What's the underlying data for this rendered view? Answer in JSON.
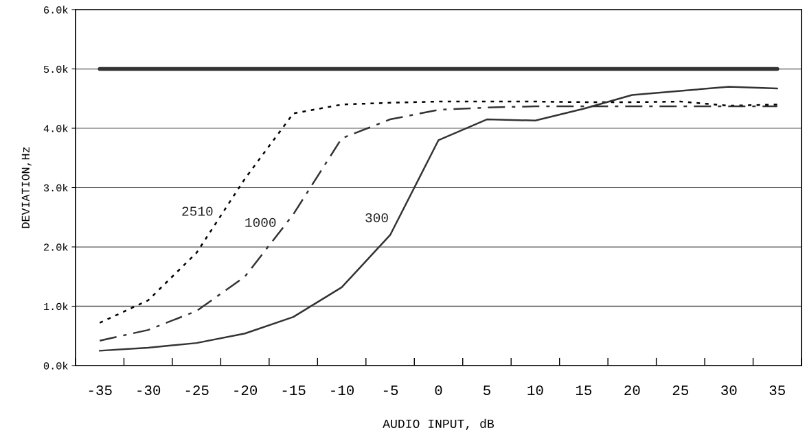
{
  "chart_data": {
    "type": "line",
    "xlabel": "AUDIO INPUT, dB",
    "ylabel": "DEVIATION,Hz",
    "categories": [
      "-35",
      "-30",
      "-25",
      "-20",
      "-15",
      "-10",
      "-5",
      "0",
      "5",
      "10",
      "15",
      "20",
      "25",
      "30",
      "35"
    ],
    "series": [
      {
        "color": "#333333",
        "line_style": "solid",
        "values": [
          5.0,
          5.0,
          5.0,
          5.0,
          5.0,
          5.0,
          5.0,
          5.0,
          5.0,
          5.0,
          5.0,
          5.0,
          5.0,
          5.0,
          5.0
        ]
      },
      {
        "name": "2510",
        "color": "#000000",
        "line_style": "dotted",
        "values": [
          0.72,
          1.1,
          1.9,
          3.15,
          4.25,
          4.4,
          4.43,
          4.45,
          4.45,
          4.45,
          4.44,
          4.44,
          4.45,
          4.38,
          4.4
        ]
      },
      {
        "name": "1000",
        "color": "#333333",
        "line_style": "dashdot",
        "values": [
          0.42,
          0.6,
          0.92,
          1.5,
          2.55,
          3.83,
          4.15,
          4.31,
          4.35,
          4.37,
          4.37,
          4.37,
          4.37,
          4.37,
          4.37
        ]
      },
      {
        "name": "300",
        "color": "#333333",
        "line_style": "solid",
        "values": [
          0.25,
          0.3,
          0.38,
          0.54,
          0.82,
          1.32,
          2.2,
          3.8,
          4.15,
          4.13,
          4.33,
          4.56,
          4.63,
          4.7,
          4.67
        ]
      }
    ],
    "ylim": [
      0,
      6
    ],
    "yticks": [
      {
        "value": 0,
        "label": "0.0k"
      },
      {
        "value": 1,
        "label": "1.0k"
      },
      {
        "value": 2,
        "label": "2.0k"
      },
      {
        "value": 3,
        "label": "3.0k"
      },
      {
        "value": 4,
        "label": "4.0k"
      },
      {
        "value": 5,
        "label": "5.0k"
      },
      {
        "value": 6,
        "label": "6.0k"
      }
    ],
    "grid": "y",
    "marker": "none"
  }
}
